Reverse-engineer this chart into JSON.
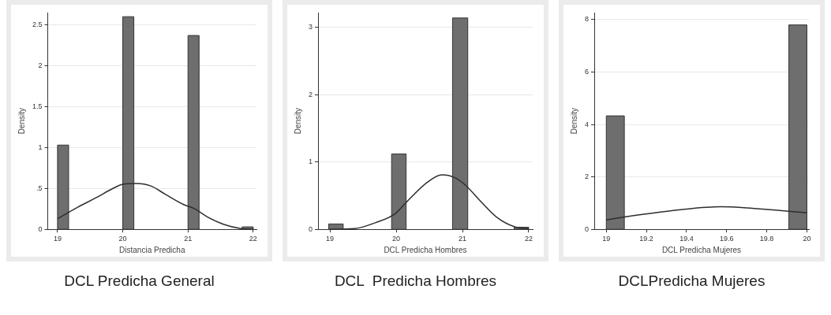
{
  "chart_data": [
    {
      "type": "histogram",
      "title": "DCL Predicha General",
      "xlabel": "Distancia Predicha",
      "ylabel": "Density",
      "bins": [
        19,
        19.17,
        20,
        20.17,
        21,
        21.17,
        21.83,
        22
      ],
      "values": [
        1.03,
        0,
        2.6,
        0,
        2.37,
        0,
        0.03
      ],
      "color": "#6e6e6e",
      "series": [
        {
          "type": "line",
          "color": "#2e2e2e",
          "x": [
            19,
            19.31,
            19.6,
            19.85,
            20.0,
            20.21,
            20.43,
            20.65,
            20.94,
            21.08,
            21.3,
            21.55,
            21.81,
            22
          ],
          "values": [
            0.13,
            0.27,
            0.39,
            0.5,
            0.55,
            0.56,
            0.53,
            0.43,
            0.3,
            0.26,
            0.15,
            0.06,
            0.01,
            0
          ]
        }
      ],
      "xlim": [
        18.85,
        22.05
      ],
      "xticks": [
        19,
        20,
        21,
        22
      ],
      "ylim": [
        0,
        2.65
      ],
      "yticks": [
        0,
        {
          "value": 0.5,
          "label": ".5"
        },
        1,
        {
          "value": 1.5,
          "label": "1.5"
        },
        2,
        {
          "value": 2.5,
          "label": "2.5"
        }
      ],
      "grid": "y",
      "legend": false
    },
    {
      "type": "histogram",
      "title": "DCL  Predicha Hombres",
      "xlabel": "DCL Predicha Hombres",
      "ylabel": "Density",
      "bins": [
        18.98,
        19.2,
        19.93,
        20.15,
        20.85,
        21.08,
        21.78,
        22
      ],
      "values": [
        0.08,
        0,
        1.12,
        0,
        3.14,
        0,
        0.03
      ],
      "color": "#6e6e6e",
      "series": [
        {
          "type": "line",
          "color": "#2e2e2e",
          "x": [
            19,
            19.37,
            19.69,
            19.98,
            20.18,
            20.47,
            20.69,
            20.88,
            21.04,
            21.29,
            21.53,
            21.78,
            22
          ],
          "values": [
            0,
            0.01,
            0.1,
            0.23,
            0.43,
            0.7,
            0.81,
            0.77,
            0.66,
            0.4,
            0.17,
            0.04,
            0.01
          ]
        }
      ],
      "xlim": [
        18.82,
        22.06
      ],
      "xticks": [
        19,
        20,
        21,
        22
      ],
      "ylim": [
        0,
        3.22
      ],
      "yticks": [
        0,
        1,
        2,
        3
      ],
      "grid": "y",
      "legend": false
    },
    {
      "type": "histogram",
      "title": "DCLPredicha Mujeres",
      "xlabel": "DCL Predicha Mujeres",
      "ylabel": "Density",
      "bins": [
        19,
        19.09,
        19.91,
        20
      ],
      "values": [
        4.33,
        0,
        7.8
      ],
      "color": "#6e6e6e",
      "series": [
        {
          "type": "line",
          "color": "#2e2e2e",
          "x": [
            19,
            19.18,
            19.38,
            19.57,
            19.7,
            19.83,
            20
          ],
          "values": [
            0.36,
            0.57,
            0.76,
            0.86,
            0.82,
            0.74,
            0.63
          ]
        }
      ],
      "xlim": [
        18.94,
        20.01
      ],
      "xticks": [
        19,
        19.2,
        19.4,
        19.6,
        19.8,
        20
      ],
      "ylim": [
        0,
        8.27
      ],
      "yticks": [
        0,
        2,
        4,
        6,
        8
      ],
      "grid": "y",
      "legend": false
    }
  ]
}
